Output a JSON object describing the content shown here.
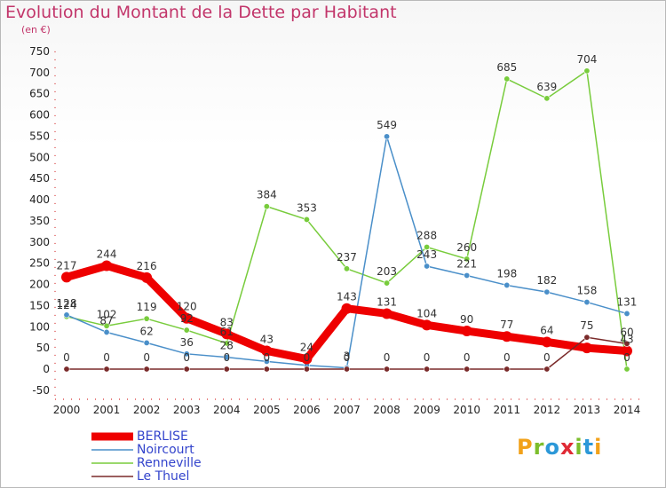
{
  "title": "Evolution du Montant de la Dette par Habitant",
  "subtitle": "(en €)",
  "logo_text": "Proxiti",
  "logo_colors": [
    "#f2a21a",
    "#7cbe2c",
    "#2c98d8",
    "#e02a35",
    "#7cbe2c",
    "#2c98d8",
    "#f2a21a"
  ],
  "chart_data": {
    "type": "line",
    "title": "Evolution du Montant de la Dette par Habitant",
    "ylabel": "(en €)",
    "x": [
      "2000",
      "2001",
      "2002",
      "2003",
      "2004",
      "2005",
      "2006",
      "2007",
      "2008",
      "2009",
      "2010",
      "2011",
      "2012",
      "2013",
      "2014"
    ],
    "ylim": [
      -50,
      750
    ],
    "yticks": [
      -50,
      0,
      50,
      100,
      150,
      200,
      250,
      300,
      350,
      400,
      450,
      500,
      550,
      600,
      650,
      700,
      750
    ],
    "grid": false,
    "legend_position": "bottom-left",
    "series": [
      {
        "name": "BERLISE",
        "color": "#ee0000",
        "values": [
          217,
          244,
          216,
          120,
          83,
          43,
          24,
          143,
          131,
          104,
          90,
          77,
          64,
          50,
          43
        ],
        "labels": [
          "217",
          "244",
          "216",
          "120",
          "83",
          "43",
          "24",
          "143",
          "131",
          "104",
          "90",
          "77",
          "64",
          "",
          "43"
        ]
      },
      {
        "name": "Noircourt",
        "color": "#4a8fc9",
        "values": [
          128,
          87,
          62,
          36,
          28,
          18,
          9,
          3,
          549,
          243,
          221,
          198,
          182,
          158,
          131
        ],
        "labels": [
          "128",
          "87",
          "62",
          "36",
          "28",
          "",
          "",
          "3",
          "549",
          "243",
          "221",
          "198",
          "182",
          "158",
          "131"
        ]
      },
      {
        "name": "Renneville",
        "color": "#78cc3c",
        "values": [
          124,
          102,
          119,
          92,
          61,
          384,
          353,
          237,
          203,
          288,
          260,
          685,
          639,
          704,
          0
        ],
        "labels": [
          "124",
          "102",
          "119",
          "92",
          "61",
          "384",
          "353",
          "237",
          "203",
          "288",
          "260",
          "685",
          "639",
          "704",
          "0"
        ]
      },
      {
        "name": "Le Thuel",
        "color": "#7a2a2a",
        "values": [
          0,
          0,
          0,
          0,
          0,
          0,
          0,
          0,
          0,
          0,
          0,
          0,
          0,
          75,
          60
        ],
        "labels": [
          "0",
          "0",
          "0",
          "0",
          "0",
          "0",
          "0",
          "0",
          "0",
          "0",
          "0",
          "0",
          "0",
          "75",
          "60"
        ]
      }
    ]
  }
}
